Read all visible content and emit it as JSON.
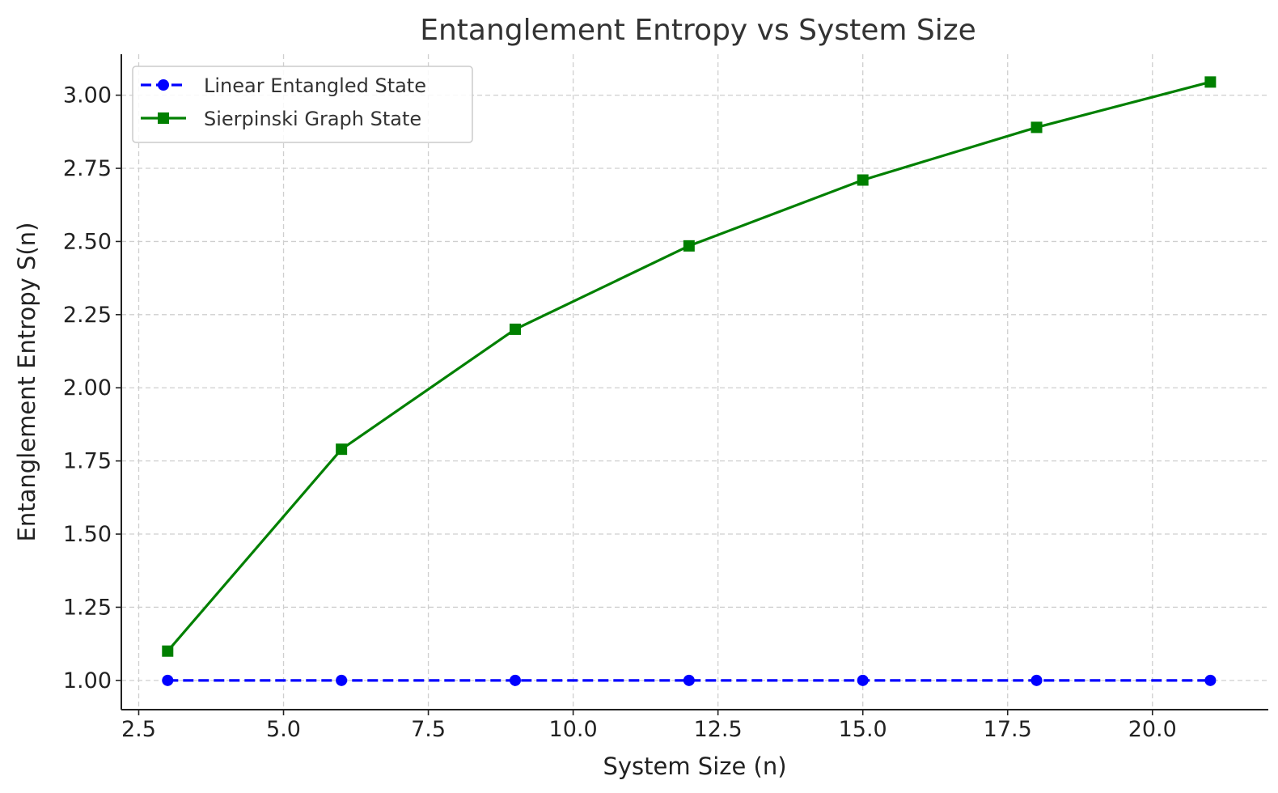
{
  "chart_data": {
    "type": "line",
    "title": "Entanglement Entropy vs System Size",
    "xlabel": "System Size (n)",
    "ylabel": "Entanglement Entropy S(n)",
    "xlim": [
      2.2,
      22.0
    ],
    "ylim": [
      0.9,
      3.14
    ],
    "xticks": [
      2.5,
      5.0,
      7.5,
      10.0,
      12.5,
      15.0,
      17.5,
      20.0
    ],
    "xtick_labels": [
      "2.5",
      "5.0",
      "7.5",
      "10.0",
      "12.5",
      "15.0",
      "17.5",
      "20.0"
    ],
    "yticks": [
      1.0,
      1.25,
      1.5,
      1.75,
      2.0,
      2.25,
      2.5,
      2.75,
      3.0
    ],
    "ytick_labels": [
      "1.00",
      "1.25",
      "1.50",
      "1.75",
      "2.00",
      "2.25",
      "2.50",
      "2.75",
      "3.00"
    ],
    "grid": true,
    "legend_position": "top-left",
    "x": [
      3,
      6,
      9,
      12,
      15,
      18,
      21
    ],
    "series": [
      {
        "name": "Linear Entangled State",
        "values": [
          1.0,
          1.0,
          1.0,
          1.0,
          1.0,
          1.0,
          1.0
        ],
        "color": "#0000ff",
        "line_style": "dashed",
        "marker": "circle"
      },
      {
        "name": "Sierpinski Graph State",
        "values": [
          1.1,
          1.79,
          2.2,
          2.485,
          2.71,
          2.89,
          3.045
        ],
        "color": "#008000",
        "line_style": "solid",
        "marker": "square"
      }
    ]
  }
}
